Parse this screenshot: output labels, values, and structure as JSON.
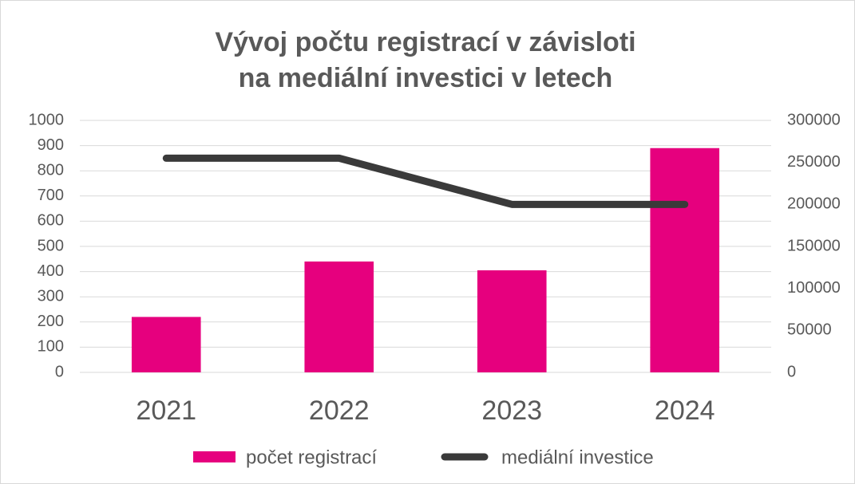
{
  "chart_data": {
    "type": "bar_line",
    "title": [
      "Vývoj počtu registrací v závisloti",
      "na mediální investici v letech"
    ],
    "categories": [
      "2021",
      "2022",
      "2023",
      "2024"
    ],
    "series": [
      {
        "name": "počet registrací",
        "type": "bar",
        "color": "#e6007e",
        "values": [
          220,
          440,
          405,
          890
        ]
      },
      {
        "name": "mediální investice",
        "type": "line",
        "axis": "y2",
        "color": "#3a3a3a",
        "values": [
          255000,
          255000,
          200000,
          200000
        ]
      }
    ],
    "ylim": [
      0,
      1000
    ],
    "yticks": [
      0,
      100,
      200,
      300,
      400,
      500,
      600,
      700,
      800,
      900,
      1000
    ],
    "y2lim": [
      0,
      300000
    ],
    "y2ticks": [
      0,
      50000,
      100000,
      150000,
      200000,
      250000,
      300000
    ],
    "grid": true,
    "legend": "bottom"
  }
}
